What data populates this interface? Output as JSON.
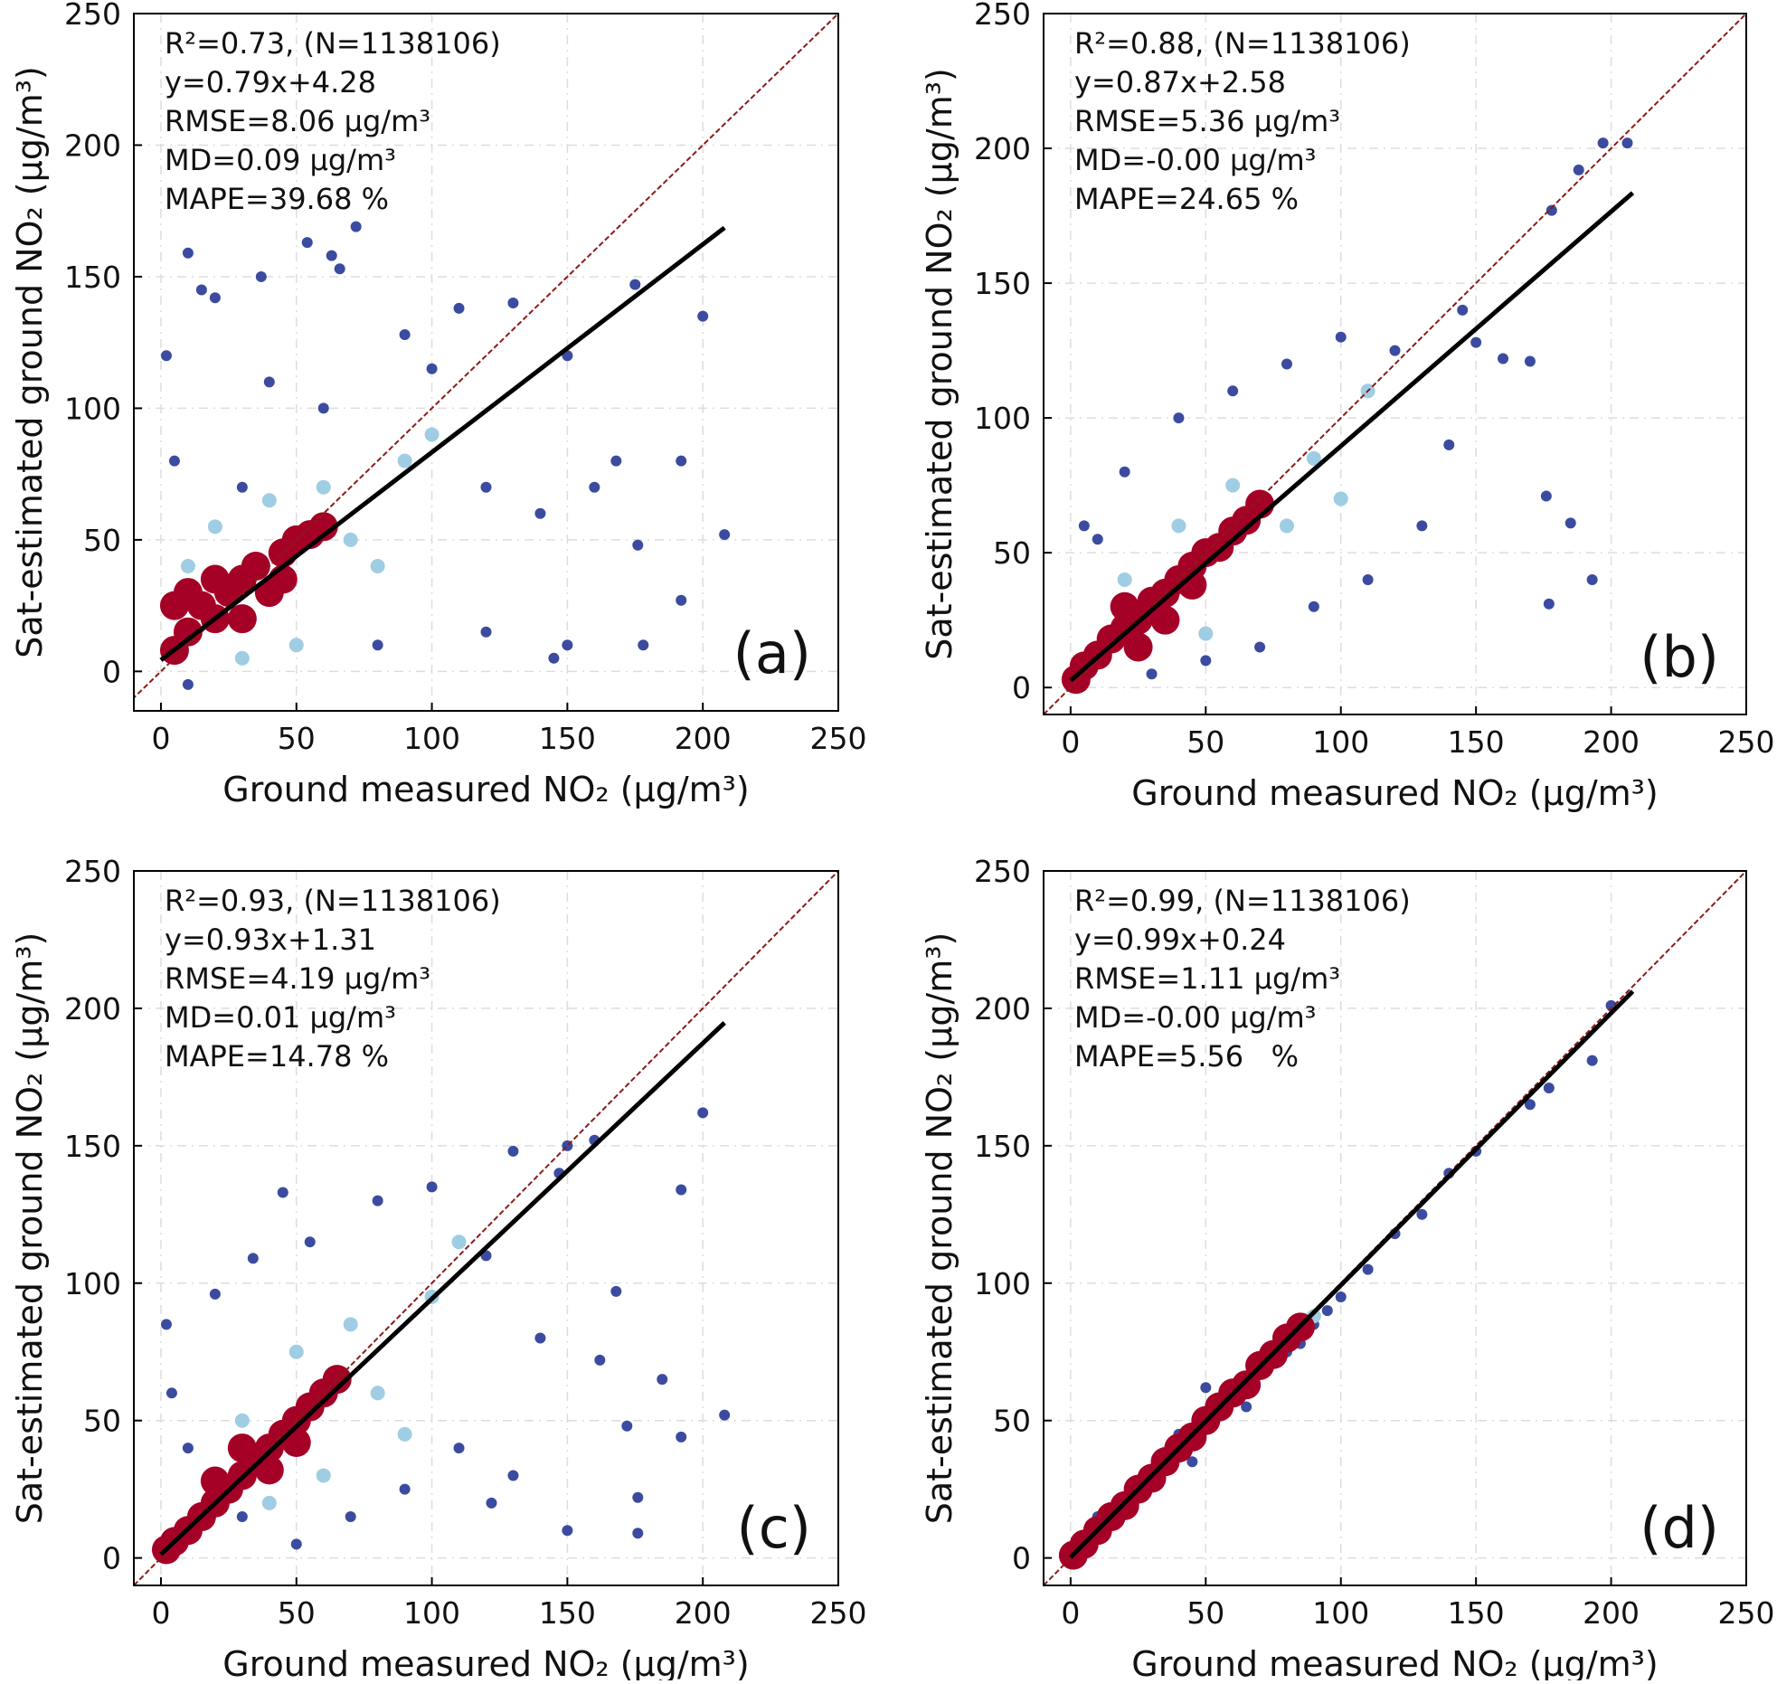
{
  "chart_data": [
    {
      "type": "scatter",
      "panel_label": "(a)",
      "x_label": "Ground measured NO₂ (μg/m³)",
      "y_label": "Sat-estimated ground NO₂ (μg/m³)",
      "annotations": [
        "R²=0.73, (N=1138106)",
        "y=0.79x+4.28",
        "RMSE=8.06 μg/m³",
        "MD=0.09 μg/m³",
        "MAPE=39.68 %"
      ],
      "xlim": [
        -10,
        250
      ],
      "ylim": [
        -15,
        250
      ],
      "xticks": [
        0,
        50,
        100,
        150,
        200,
        250
      ],
      "yticks": [
        0,
        50,
        100,
        150,
        200,
        250
      ],
      "grid": true,
      "series": [
        {
          "color": "#3b4ba0",
          "x": [
            10,
            20,
            37,
            54,
            63,
            72,
            66,
            2,
            15,
            200,
            208,
            192,
            178,
            176,
            175,
            150,
            145,
            160,
            150,
            130,
            110,
            90,
            40,
            5,
            10,
            80,
            120,
            140,
            100,
            120,
            60,
            30,
            168,
            192
          ],
          "values": [
            159,
            142,
            150,
            163,
            158,
            169,
            153,
            120,
            145,
            135,
            52,
            80,
            10,
            48,
            147,
            10,
            5,
            70,
            120,
            140,
            138,
            128,
            110,
            80,
            -5,
            10,
            15,
            60,
            115,
            70,
            100,
            70,
            80,
            27
          ]
        },
        {
          "color": "#9fcde3",
          "x": [
            20,
            40,
            60,
            70,
            50,
            80,
            90,
            100,
            30,
            10
          ],
          "values": [
            55,
            65,
            70,
            50,
            10,
            40,
            80,
            90,
            5,
            40
          ]
        },
        {
          "color": "#a50026",
          "x": [
            5,
            10,
            15,
            20,
            25,
            30,
            35,
            40,
            45,
            50,
            55,
            60,
            30,
            20,
            45,
            10,
            5
          ],
          "values": [
            8,
            15,
            25,
            20,
            30,
            35,
            40,
            30,
            45,
            50,
            52,
            55,
            20,
            35,
            35,
            30,
            25
          ]
        }
      ],
      "fit_line": {
        "color": "#000000",
        "x": [
          0,
          208
        ],
        "y": [
          4.28,
          168.6
        ]
      }
    },
    {
      "type": "scatter",
      "panel_label": "(b)",
      "x_label": "Ground measured NO₂ (μg/m³)",
      "y_label": "Sat-estimated ground NO₂ (μg/m³)",
      "annotations": [
        "R²=0.88, (N=1138106)",
        "y=0.87x+2.58",
        "RMSE=5.36 μg/m³",
        "MD=-0.00 μg/m³",
        "MAPE=24.65 %"
      ],
      "xlim": [
        -10,
        250
      ],
      "ylim": [
        -10,
        250
      ],
      "xticks": [
        0,
        50,
        100,
        150,
        200,
        250
      ],
      "yticks": [
        0,
        50,
        100,
        150,
        200,
        250
      ],
      "grid": true,
      "series": [
        {
          "color": "#3b4ba0",
          "x": [
            177,
            193,
            185,
            176,
            170,
            160,
            150,
            145,
            178,
            197,
            188,
            206,
            5,
            20,
            40,
            60,
            80,
            100,
            120,
            130,
            110,
            90,
            70,
            50,
            140,
            30,
            10
          ],
          "values": [
            31,
            40,
            61,
            71,
            121,
            122,
            128,
            140,
            177,
            202,
            192,
            202,
            60,
            80,
            100,
            110,
            120,
            130,
            125,
            60,
            40,
            30,
            15,
            10,
            90,
            5,
            55
          ]
        },
        {
          "color": "#9fcde3",
          "x": [
            40,
            60,
            80,
            90,
            100,
            20,
            50,
            110
          ],
          "values": [
            60,
            75,
            60,
            85,
            70,
            40,
            20,
            110
          ]
        },
        {
          "color": "#a50026",
          "x": [
            2,
            5,
            10,
            15,
            20,
            25,
            30,
            35,
            40,
            45,
            50,
            55,
            60,
            65,
            70,
            25,
            20,
            35,
            45
          ],
          "values": [
            3,
            8,
            12,
            18,
            22,
            25,
            32,
            35,
            40,
            45,
            50,
            52,
            58,
            62,
            68,
            15,
            30,
            25,
            38
          ]
        }
      ],
      "fit_line": {
        "color": "#000000",
        "x": [
          0,
          208
        ],
        "y": [
          2.58,
          183.5
        ]
      }
    },
    {
      "type": "scatter",
      "panel_label": "(c)",
      "x_label": "Ground measured NO₂ (μg/m³)",
      "y_label": "Sat-estimated ground NO₂ (μg/m³)",
      "annotations": [
        "R²=0.93, (N=1138106)",
        "y=0.93x+1.31",
        "RMSE=4.19 μg/m³",
        "MD=0.01 μg/m³",
        "MAPE=14.78 %"
      ],
      "xlim": [
        -10,
        250
      ],
      "ylim": [
        -10,
        250
      ],
      "xticks": [
        0,
        50,
        100,
        150,
        200,
        250
      ],
      "yticks": [
        0,
        50,
        100,
        150,
        200,
        250
      ],
      "grid": true,
      "series": [
        {
          "color": "#3b4ba0",
          "x": [
            200,
            208,
            192,
            192,
            185,
            176,
            176,
            172,
            168,
            160,
            150,
            147,
            150,
            130,
            2,
            4,
            45,
            34,
            20,
            10,
            30,
            55,
            80,
            100,
            120,
            140,
            130,
            110,
            90,
            70,
            50,
            122,
            162
          ],
          "values": [
            162,
            52,
            44,
            134,
            65,
            9,
            22,
            48,
            97,
            152,
            10,
            140,
            150,
            148,
            85,
            60,
            133,
            109,
            96,
            40,
            15,
            115,
            130,
            135,
            110,
            80,
            30,
            40,
            25,
            15,
            5,
            20,
            72
          ]
        },
        {
          "color": "#9fcde3",
          "x": [
            30,
            50,
            70,
            80,
            100,
            90,
            60,
            40,
            110
          ],
          "values": [
            50,
            75,
            85,
            60,
            95,
            45,
            30,
            20,
            115
          ]
        },
        {
          "color": "#a50026",
          "x": [
            2,
            5,
            10,
            15,
            20,
            25,
            30,
            35,
            40,
            45,
            50,
            55,
            60,
            65,
            30,
            40,
            50,
            20
          ],
          "values": [
            3,
            6,
            10,
            15,
            20,
            25,
            30,
            35,
            40,
            45,
            50,
            55,
            60,
            65,
            40,
            32,
            42,
            28
          ]
        }
      ],
      "fit_line": {
        "color": "#000000",
        "x": [
          0,
          208
        ],
        "y": [
          1.31,
          194.75
        ]
      }
    },
    {
      "type": "scatter",
      "panel_label": "(d)",
      "x_label": "Ground measured NO₂ (μg/m³)",
      "y_label": "Sat-estimated ground NO₂ (μg/m³)",
      "annotations": [
        "R²=0.99, (N=1138106)",
        "y=0.99x+0.24",
        "RMSE=1.11 μg/m³",
        "MD=-0.00 μg/m³",
        "MAPE=5.56   %"
      ],
      "xlim": [
        -10,
        250
      ],
      "ylim": [
        -10,
        250
      ],
      "xticks": [
        0,
        50,
        100,
        150,
        200,
        250
      ],
      "yticks": [
        0,
        50,
        100,
        150,
        200,
        250
      ],
      "grid": true,
      "series": [
        {
          "color": "#3b4ba0",
          "x": [
            193,
            200,
            177,
            170,
            150,
            140,
            130,
            120,
            110,
            100,
            95,
            90,
            80,
            60,
            50,
            40,
            30,
            20,
            10,
            5,
            75,
            85,
            65,
            45
          ],
          "values": [
            181,
            201,
            171,
            165,
            148,
            140,
            125,
            118,
            105,
            95,
            90,
            85,
            75,
            60,
            62,
            45,
            30,
            22,
            15,
            5,
            72,
            78,
            55,
            35
          ]
        },
        {
          "color": "#9fcde3",
          "x": [
            70,
            90,
            55,
            35
          ],
          "values": [
            68,
            88,
            52,
            38
          ]
        },
        {
          "color": "#a50026",
          "x": [
            1,
            5,
            10,
            15,
            20,
            25,
            30,
            35,
            40,
            45,
            50,
            55,
            60,
            65,
            70,
            75,
            80,
            85
          ],
          "values": [
            1,
            5,
            10,
            15,
            19,
            25,
            29,
            35,
            40,
            44,
            50,
            55,
            60,
            63,
            70,
            74,
            80,
            84
          ]
        }
      ],
      "fit_line": {
        "color": "#000000",
        "x": [
          0,
          208
        ],
        "y": [
          0.24,
          206.2
        ]
      }
    }
  ]
}
